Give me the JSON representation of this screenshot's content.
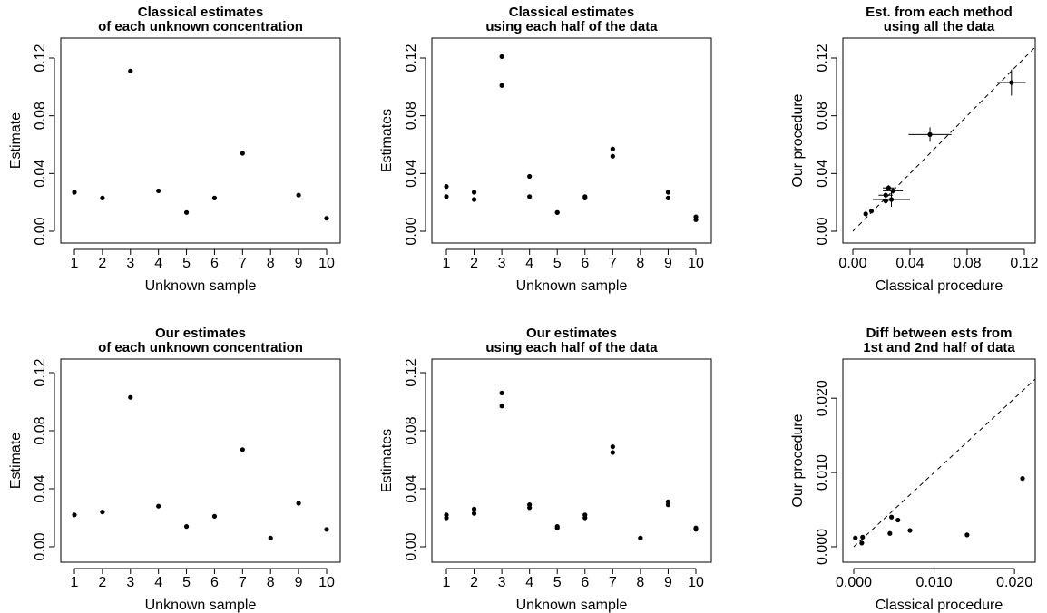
{
  "chart_data": [
    {
      "id": "p1",
      "type": "scatter",
      "title": [
        "Classical estimates",
        "of each unknown concentration"
      ],
      "xlabel": "Unknown sample",
      "ylabel": "Estimate",
      "xlim": [
        1,
        10
      ],
      "ylim": [
        0,
        0.12
      ],
      "xticks": [
        "1",
        "2",
        "3",
        "4",
        "5",
        "6",
        "7",
        "8",
        "9",
        "10"
      ],
      "yticks": [
        "0.00",
        "0.04",
        "0.08",
        "0.12"
      ],
      "points": [
        {
          "x": 1,
          "y": 0.027
        },
        {
          "x": 2,
          "y": 0.023
        },
        {
          "x": 3,
          "y": 0.111
        },
        {
          "x": 4,
          "y": 0.028
        },
        {
          "x": 5,
          "y": 0.013
        },
        {
          "x": 6,
          "y": 0.023
        },
        {
          "x": 7,
          "y": 0.054
        },
        {
          "x": 9,
          "y": 0.025
        },
        {
          "x": 10,
          "y": 0.009
        }
      ]
    },
    {
      "id": "p2",
      "type": "scatter",
      "title": [
        "Classical estimates",
        "using each half of the data"
      ],
      "xlabel": "Unknown sample",
      "ylabel": "Estimates",
      "xlim": [
        1,
        10
      ],
      "ylim": [
        0,
        0.12
      ],
      "xticks": [
        "1",
        "2",
        "3",
        "4",
        "5",
        "6",
        "7",
        "8",
        "9",
        "10"
      ],
      "yticks": [
        "0.00",
        "0.04",
        "0.08",
        "0.12"
      ],
      "points": [
        {
          "x": 1,
          "y": 0.031
        },
        {
          "x": 1,
          "y": 0.024
        },
        {
          "x": 2,
          "y": 0.027
        },
        {
          "x": 2,
          "y": 0.022
        },
        {
          "x": 3,
          "y": 0.121
        },
        {
          "x": 3,
          "y": 0.101
        },
        {
          "x": 4,
          "y": 0.038
        },
        {
          "x": 4,
          "y": 0.024
        },
        {
          "x": 5,
          "y": 0.013
        },
        {
          "x": 5,
          "y": 0.013
        },
        {
          "x": 6,
          "y": 0.024
        },
        {
          "x": 6,
          "y": 0.023
        },
        {
          "x": 7,
          "y": 0.057
        },
        {
          "x": 7,
          "y": 0.052
        },
        {
          "x": 9,
          "y": 0.027
        },
        {
          "x": 9,
          "y": 0.023
        },
        {
          "x": 10,
          "y": 0.01
        },
        {
          "x": 10,
          "y": 0.008
        }
      ]
    },
    {
      "id": "p3",
      "type": "scatter",
      "title": [
        "Est. from each method",
        "using all the data"
      ],
      "xlabel": "Classical procedure",
      "ylabel": "Our procedure",
      "xlim": [
        0,
        0.12
      ],
      "ylim": [
        0,
        0.12
      ],
      "xticks": [
        "0.00",
        "0.04",
        "0.08",
        "0.12"
      ],
      "yticks": [
        "0.00",
        "0.04",
        "0.08",
        "0.12"
      ],
      "reference_line": "y = x (dashed)",
      "points": [
        {
          "x": 0.027,
          "y": 0.022,
          "xerr": 0.013,
          "yerr": 0.005
        },
        {
          "x": 0.023,
          "y": 0.025,
          "xerr": 0.005,
          "yerr": 0.002
        },
        {
          "x": 0.111,
          "y": 0.103,
          "xerr": 0.01,
          "yerr": 0.009
        },
        {
          "x": 0.028,
          "y": 0.028,
          "xerr": 0.007,
          "yerr": 0.002
        },
        {
          "x": 0.013,
          "y": 0.014
        },
        {
          "x": 0.023,
          "y": 0.021,
          "xerr": 0.002,
          "yerr": 0.002
        },
        {
          "x": 0.054,
          "y": 0.067,
          "xerr": 0.015,
          "yerr": 0.005
        },
        {
          "x": 0.025,
          "y": 0.03,
          "xerr": 0.004,
          "yerr": 0.002
        },
        {
          "x": 0.009,
          "y": 0.012
        }
      ]
    },
    {
      "id": "p4",
      "type": "scatter",
      "title": [
        "Our estimates",
        "of each unknown concentration"
      ],
      "xlabel": "Unknown sample",
      "ylabel": "Estimate",
      "xlim": [
        1,
        10
      ],
      "ylim": [
        0,
        0.12
      ],
      "xticks": [
        "1",
        "2",
        "3",
        "4",
        "5",
        "6",
        "7",
        "8",
        "9",
        "10"
      ],
      "yticks": [
        "0.00",
        "0.04",
        "0.08",
        "0.12"
      ],
      "points": [
        {
          "x": 1,
          "y": 0.022
        },
        {
          "x": 2,
          "y": 0.024
        },
        {
          "x": 3,
          "y": 0.103
        },
        {
          "x": 4,
          "y": 0.028
        },
        {
          "x": 5,
          "y": 0.014
        },
        {
          "x": 6,
          "y": 0.021
        },
        {
          "x": 7,
          "y": 0.067
        },
        {
          "x": 8,
          "y": 0.006
        },
        {
          "x": 9,
          "y": 0.03
        },
        {
          "x": 10,
          "y": 0.012
        }
      ]
    },
    {
      "id": "p5",
      "type": "scatter",
      "title": [
        "Our estimates",
        "using each half of the data"
      ],
      "xlabel": "Unknown sample",
      "ylabel": "Estimates",
      "xlim": [
        1,
        10
      ],
      "ylim": [
        0,
        0.12
      ],
      "xticks": [
        "1",
        "2",
        "3",
        "4",
        "5",
        "6",
        "7",
        "8",
        "9",
        "10"
      ],
      "yticks": [
        "0.00",
        "0.04",
        "0.08",
        "0.12"
      ],
      "points": [
        {
          "x": 1,
          "y": 0.022
        },
        {
          "x": 1,
          "y": 0.02
        },
        {
          "x": 2,
          "y": 0.026
        },
        {
          "x": 2,
          "y": 0.023
        },
        {
          "x": 3,
          "y": 0.106
        },
        {
          "x": 3,
          "y": 0.097
        },
        {
          "x": 4,
          "y": 0.029
        },
        {
          "x": 4,
          "y": 0.027
        },
        {
          "x": 5,
          "y": 0.014
        },
        {
          "x": 5,
          "y": 0.013
        },
        {
          "x": 6,
          "y": 0.022
        },
        {
          "x": 6,
          "y": 0.02
        },
        {
          "x": 7,
          "y": 0.069
        },
        {
          "x": 7,
          "y": 0.065
        },
        {
          "x": 8,
          "y": 0.006
        },
        {
          "x": 8,
          "y": 0.006
        },
        {
          "x": 9,
          "y": 0.031
        },
        {
          "x": 9,
          "y": 0.029
        },
        {
          "x": 10,
          "y": 0.013
        },
        {
          "x": 10,
          "y": 0.012
        }
      ]
    },
    {
      "id": "p6",
      "type": "scatter",
      "title": [
        "Diff between ests from",
        "1st and 2nd half of data"
      ],
      "xlabel": "Classical procedure",
      "ylabel": "Our procedure",
      "xlim": [
        0,
        0.021
      ],
      "ylim": [
        0,
        0.021
      ],
      "xticks": [
        "0.000",
        "0.010",
        "0.020"
      ],
      "yticks": [
        "0.000",
        "0.010",
        "0.020"
      ],
      "reference_line": "y = x (dashed)",
      "points": [
        {
          "x": 0.0002,
          "y": 0.0012
        },
        {
          "x": 0.001,
          "y": 0.0005
        },
        {
          "x": 0.0011,
          "y": 0.0013
        },
        {
          "x": 0.0045,
          "y": 0.0018
        },
        {
          "x": 0.0047,
          "y": 0.004
        },
        {
          "x": 0.0055,
          "y": 0.0036
        },
        {
          "x": 0.007,
          "y": 0.0022
        },
        {
          "x": 0.0141,
          "y": 0.0016
        },
        {
          "x": 0.021,
          "y": 0.0092
        }
      ]
    }
  ]
}
